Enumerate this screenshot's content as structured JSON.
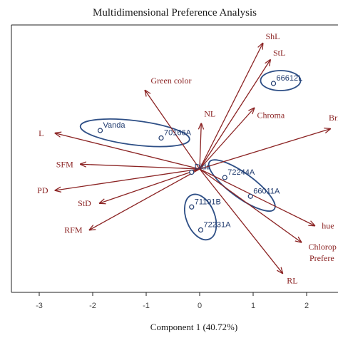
{
  "chart_data": {
    "type": "scatter",
    "subtype": "biplot",
    "title": "Multidimensional Preference Analysis",
    "xlabel": "Component 1 (40.72%)",
    "ylabel": "",
    "xlim": [
      -3.3,
      2.7
    ],
    "ylim": [
      -2.5,
      2.6
    ],
    "x_ticks": [
      "-3",
      "-2",
      "-1",
      "0",
      "1",
      "2"
    ],
    "x_tick_values": [
      -3,
      -2,
      -1,
      0,
      1,
      2
    ],
    "origin": [
      0.0,
      0.0
    ],
    "colors": {
      "vectors": "#8b2323",
      "points": "#1f3a6e",
      "groups": "#2e4f86",
      "frame": "#222222"
    },
    "vectors": [
      {
        "name": "ShL",
        "x": 1.18,
        "y": 2.35
      },
      {
        "name": "StL",
        "x": 1.32,
        "y": 2.04
      },
      {
        "name": "Chroma",
        "x": 1.02,
        "y": 1.14
      },
      {
        "name": "Green color",
        "x": -1.02,
        "y": 1.47
      },
      {
        "name": "NL",
        "x": 0.03,
        "y": 0.85
      },
      {
        "name": "Brigh",
        "x": 2.44,
        "y": 0.75
      },
      {
        "name": "L",
        "x": -2.7,
        "y": 0.67
      },
      {
        "name": "SFM",
        "x": -2.23,
        "y": 0.09
      },
      {
        "name": "PD",
        "x": -2.7,
        "y": -0.4
      },
      {
        "name": "StD",
        "x": -1.87,
        "y": -0.64
      },
      {
        "name": "RFM",
        "x": -2.06,
        "y": -1.14
      },
      {
        "name": "hue",
        "x": 2.15,
        "y": -1.06
      },
      {
        "name": "Chlorop",
        "x": 1.9,
        "y": -1.37
      },
      {
        "name": "Prefere",
        "x": 1.92,
        "y": -1.45
      },
      {
        "name": "RL",
        "x": 1.55,
        "y": -1.95
      }
    ],
    "points": [
      {
        "name": "66612L",
        "x": 1.38,
        "y": 1.6
      },
      {
        "name": "Vanda",
        "x": -1.86,
        "y": 0.72
      },
      {
        "name": "70166A",
        "x": -0.72,
        "y": 0.58
      },
      {
        "name": "Dida",
        "x": -0.15,
        "y": -0.06
      },
      {
        "name": "72244A",
        "x": 0.47,
        "y": -0.16
      },
      {
        "name": "66011A",
        "x": 0.95,
        "y": -0.51
      },
      {
        "name": "71191B",
        "x": -0.15,
        "y": -0.71
      },
      {
        "name": "72231A",
        "x": 0.02,
        "y": -1.14
      }
    ],
    "groups": [
      {
        "members": [
          "66612L"
        ]
      },
      {
        "members": [
          "Vanda",
          "70166A"
        ]
      },
      {
        "members": [
          "72244A",
          "66011A"
        ]
      },
      {
        "members": [
          "71191B",
          "72231A"
        ]
      }
    ]
  }
}
